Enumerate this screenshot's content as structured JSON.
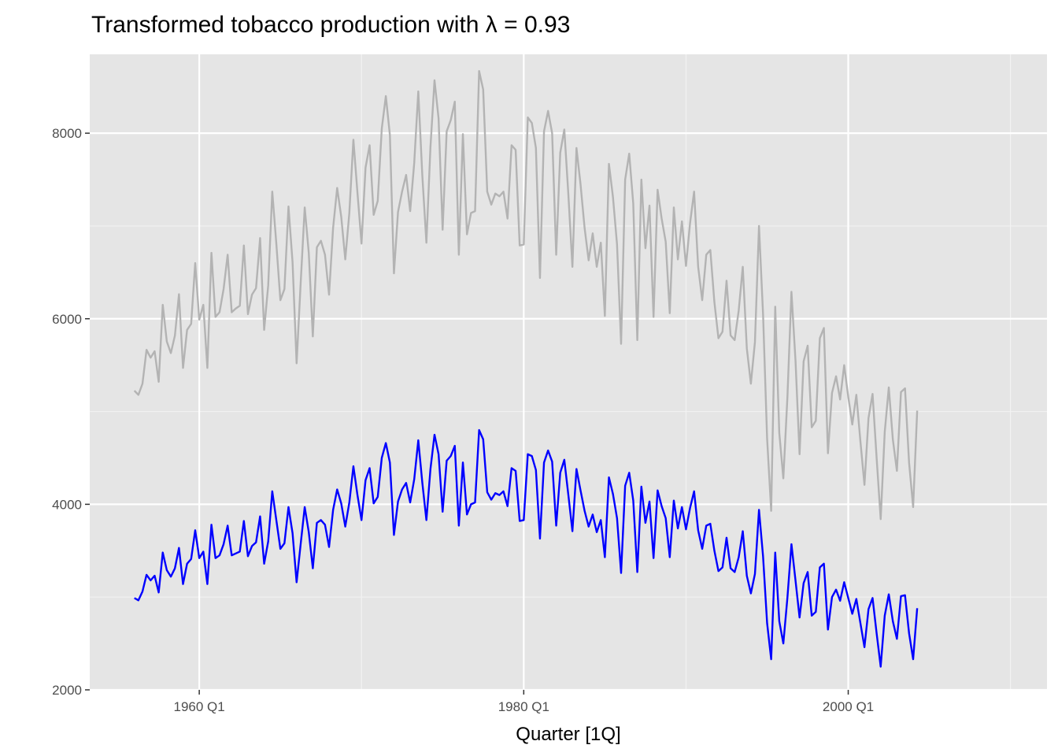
{
  "chart_data": {
    "type": "line",
    "title": "Transformed tobacco production with λ = 0.93",
    "xlabel": "Quarter [1Q]",
    "ylabel": "",
    "x_start": "1956 Q1",
    "x_end": "2004 Q2",
    "xlim": [
      "1953 Q2",
      "2012 Q2"
    ],
    "ylim": [
      2000,
      8850
    ],
    "x_ticks": [
      "1960 Q1",
      "1980 Q1",
      "2000 Q1"
    ],
    "y_ticks": [
      2000,
      4000,
      6000,
      8000
    ],
    "grid": true,
    "legend": "none",
    "series": [
      {
        "color": "#b3b3b3",
        "values": [
          5225,
          5180,
          5300,
          5665,
          5580,
          5650,
          5320,
          6150,
          5755,
          5630,
          5820,
          6265,
          5470,
          5880,
          5945,
          6600,
          5990,
          6150,
          5470,
          6710,
          6020,
          6070,
          6320,
          6690,
          6070,
          6110,
          6140,
          6790,
          6050,
          6260,
          6330,
          6870,
          5880,
          6360,
          7370,
          6810,
          6200,
          6320,
          7210,
          6610,
          5520,
          6380,
          7200,
          6710,
          5810,
          6770,
          6840,
          6690,
          6260,
          6980,
          7410,
          7100,
          6640,
          7140,
          7930,
          7360,
          6810,
          7630,
          7870,
          7120,
          7270,
          8050,
          8400,
          7980,
          6490,
          7150,
          7370,
          7550,
          7160,
          7680,
          8450,
          7540,
          6820,
          7850,
          8570,
          8160,
          6960,
          8020,
          8140,
          8340,
          6690,
          7990,
          6910,
          7140,
          7160,
          8670,
          8470,
          7370,
          7230,
          7350,
          7320,
          7370,
          7080,
          7870,
          7820,
          6790,
          6800,
          8170,
          8110,
          7840,
          6440,
          8020,
          8240,
          8000,
          6690,
          7790,
          8040,
          7340,
          6560,
          7840,
          7450,
          6980,
          6630,
          6920,
          6560,
          6820,
          6030,
          7670,
          7310,
          6800,
          5730,
          7500,
          7780,
          7240,
          5770,
          7500,
          6760,
          7220,
          6020,
          7390,
          7080,
          6830,
          6060,
          7200,
          6640,
          7050,
          6570,
          7030,
          7370,
          6560,
          6200,
          6690,
          6740,
          6180,
          5790,
          5860,
          6410,
          5820,
          5770,
          6090,
          6560,
          5680,
          5300,
          5750,
          7000,
          6050,
          4710,
          3930,
          6130,
          4770,
          4280,
          5150,
          6290,
          5550,
          4540,
          5540,
          5710,
          4830,
          4900,
          5790,
          5900,
          4550,
          5200,
          5380,
          5130,
          5500,
          5160,
          4860,
          5180,
          4680,
          4210,
          4930,
          5190,
          4500,
          3840,
          4780,
          5260,
          4700,
          4360,
          5210,
          5250,
          4450,
          3970,
          5010
        ]
      },
      {
        "color": "#0000ff",
        "values": [
          2990,
          2965,
          3060,
          3240,
          3180,
          3230,
          3050,
          3480,
          3290,
          3220,
          3310,
          3530,
          3140,
          3360,
          3410,
          3720,
          3420,
          3490,
          3140,
          3780,
          3420,
          3450,
          3570,
          3770,
          3450,
          3470,
          3490,
          3820,
          3440,
          3550,
          3590,
          3870,
          3360,
          3600,
          4140,
          3830,
          3520,
          3580,
          3970,
          3690,
          3160,
          3570,
          3970,
          3700,
          3310,
          3800,
          3830,
          3780,
          3540,
          3940,
          4160,
          4010,
          3760,
          4020,
          4410,
          4100,
          3830,
          4260,
          4390,
          4010,
          4080,
          4500,
          4660,
          4450,
          3670,
          4030,
          4160,
          4230,
          4020,
          4270,
          4690,
          4230,
          3830,
          4380,
          4750,
          4540,
          3920,
          4470,
          4520,
          4630,
          3770,
          4450,
          3890,
          4000,
          4020,
          4800,
          4700,
          4130,
          4050,
          4120,
          4100,
          4140,
          3980,
          4390,
          4360,
          3820,
          3830,
          4540,
          4520,
          4370,
          3630,
          4450,
          4580,
          4460,
          3770,
          4340,
          4480,
          4100,
          3710,
          4380,
          4150,
          3930,
          3760,
          3890,
          3700,
          3830,
          3430,
          4290,
          4110,
          3850,
          3260,
          4200,
          4340,
          4040,
          3270,
          4190,
          3800,
          4030,
          3420,
          4150,
          3980,
          3850,
          3430,
          4040,
          3740,
          3970,
          3730,
          3960,
          4140,
          3720,
          3520,
          3770,
          3790,
          3500,
          3280,
          3320,
          3640,
          3310,
          3270,
          3430,
          3710,
          3230,
          3040,
          3250,
          3940,
          3440,
          2720,
          2330,
          3480,
          2740,
          2500,
          2990,
          3570,
          3180,
          2780,
          3150,
          3270,
          2800,
          2840,
          3320,
          3360,
          2650,
          3000,
          3080,
          2960,
          3160,
          2990,
          2820,
          2980,
          2720,
          2460,
          2870,
          2990,
          2610,
          2250,
          2800,
          3030,
          2740,
          2550,
          3010,
          3020,
          2610,
          2330,
          2880
        ]
      }
    ]
  }
}
